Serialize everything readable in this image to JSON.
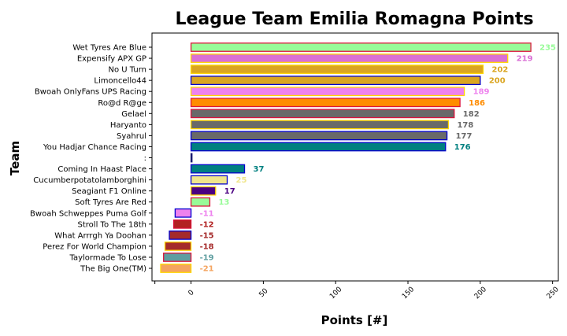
{
  "chart_data": {
    "type": "bar",
    "orientation": "horizontal",
    "title": "League Team Emilia Romagna Points",
    "xlabel": "Points [#]",
    "ylabel": "Team",
    "xlim": [
      -27,
      254
    ],
    "xticks": [
      "0",
      "50",
      "100",
      "150",
      "200",
      "250"
    ],
    "grid": false,
    "bars": [
      {
        "team": "Wet Tyres Are Blue",
        "value": 235,
        "label": "235",
        "fill": "#98fb98",
        "edge": "#dc143c",
        "label_color": "#98fb98"
      },
      {
        "team": "Expensify APX GP",
        "value": 219,
        "label": "219",
        "fill": "#da70d6",
        "edge": "#ffd700",
        "label_color": "#da70d6"
      },
      {
        "team": "No U Turn",
        "value": 202,
        "label": "202",
        "fill": "#daa520",
        "edge": "#ffd700",
        "label_color": "#daa520"
      },
      {
        "team": "Limoncello44",
        "value": 200,
        "label": "200",
        "fill": "#daa520",
        "edge": "#0000cd",
        "label_color": "#daa520"
      },
      {
        "team": "Bwoah OnlyFans UPS Racing",
        "value": 189,
        "label": "189",
        "fill": "#ee82ee",
        "edge": "#ffd700",
        "label_color": "#ee82ee"
      },
      {
        "team": "Ro@d R@ge",
        "value": 186,
        "label": "186",
        "fill": "#ff8c00",
        "edge": "#dc143c",
        "label_color": "#ff8c00"
      },
      {
        "team": "Gelael",
        "value": 182,
        "label": "182",
        "fill": "#696969",
        "edge": "#dc143c",
        "label_color": "#696969"
      },
      {
        "team": "Haryanto",
        "value": 178,
        "label": "178",
        "fill": "#696969",
        "edge": "#ffd700",
        "label_color": "#696969"
      },
      {
        "team": "Syahrul",
        "value": 177,
        "label": "177",
        "fill": "#696969",
        "edge": "#0000cd",
        "label_color": "#696969"
      },
      {
        "team": "You Hadjar Chance Racing",
        "value": 176,
        "label": "176",
        "fill": "#008080",
        "edge": "#0000cd",
        "label_color": "#008080"
      },
      {
        "team": ":",
        "value": 0,
        "label": "",
        "fill": "#191970",
        "edge": "#191970",
        "label_color": "#191970"
      },
      {
        "team": "Coming In Haast Place",
        "value": 37,
        "label": "37",
        "fill": "#008080",
        "edge": "#0000cd",
        "label_color": "#008080"
      },
      {
        "team": "Cucumberpotatolamborghini",
        "value": 25,
        "label": "25",
        "fill": "#f0e68c",
        "edge": "#0000cd",
        "label_color": "#f0e68c"
      },
      {
        "team": "Seagiant F1 Online",
        "value": 17,
        "label": "17",
        "fill": "#4b0082",
        "edge": "#ffd700",
        "label_color": "#4b0082"
      },
      {
        "team": "Soft Tyres Are Red",
        "value": 13,
        "label": "13",
        "fill": "#98fb98",
        "edge": "#dc143c",
        "label_color": "#98fb98"
      },
      {
        "team": "Bwoah Schweppes Puma Golf",
        "value": -11,
        "label": "-11",
        "fill": "#ee82ee",
        "edge": "#0000cd",
        "label_color": "#ee82ee"
      },
      {
        "team": "Stroll To The 18th",
        "value": -12,
        "label": "-12",
        "fill": "#b22222",
        "edge": "#dc143c",
        "label_color": "#b22222"
      },
      {
        "team": "What Arrrgh Ya Doohan",
        "value": -15,
        "label": "-15",
        "fill": "#a52a2a",
        "edge": "#0000cd",
        "label_color": "#a52a2a"
      },
      {
        "team": "Perez For World Champion",
        "value": -18,
        "label": "-18",
        "fill": "#a52a2a",
        "edge": "#ffd700",
        "label_color": "#a52a2a"
      },
      {
        "team": "Taylormade To Lose",
        "value": -19,
        "label": "-19",
        "fill": "#5f9ea0",
        "edge": "#dc143c",
        "label_color": "#5f9ea0"
      },
      {
        "team": "The Big One(TM)",
        "value": -21,
        "label": "-21",
        "fill": "#f4a460",
        "edge": "#ffd700",
        "label_color": "#f4a460"
      }
    ]
  }
}
